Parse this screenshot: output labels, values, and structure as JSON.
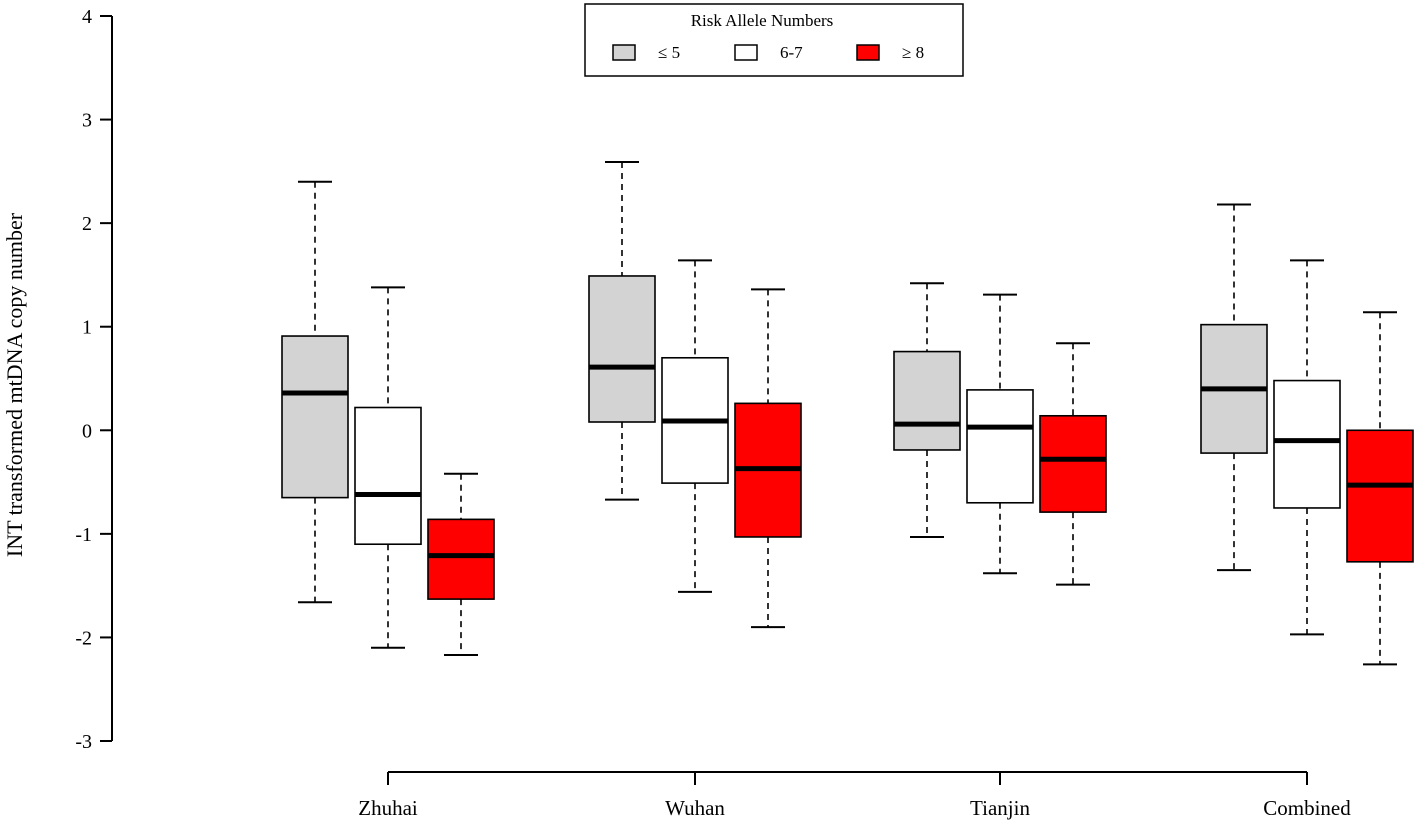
{
  "chart_data": {
    "type": "box",
    "title": "",
    "ylabel": "INT transformed mtDNA copy number",
    "xlabel": "",
    "ylim": [
      -3,
      4
    ],
    "yticks": [
      -3,
      -2,
      -1,
      0,
      1,
      2,
      3,
      4
    ],
    "grid": false,
    "legend": {
      "title": "Risk Allele Numbers",
      "placement": "top-center",
      "entries": [
        {
          "label": "≤ 5",
          "color": "#d3d3d3"
        },
        {
          "label": "6-7",
          "color": "#ffffff"
        },
        {
          "label": "≥ 8",
          "color": "#ff0000"
        }
      ]
    },
    "categories": [
      "Zhuhai",
      "Wuhan",
      "Tianjin",
      "Combined"
    ],
    "series": [
      {
        "name": "≤ 5",
        "color": "#d3d3d3",
        "boxes": [
          {
            "min": -1.66,
            "q1": -0.65,
            "median": 0.36,
            "q3": 0.91,
            "max": 2.4
          },
          {
            "min": -0.67,
            "q1": 0.08,
            "median": 0.61,
            "q3": 1.49,
            "max": 2.59
          },
          {
            "min": -1.03,
            "q1": -0.19,
            "median": 0.06,
            "q3": 0.76,
            "max": 1.42
          },
          {
            "min": -1.35,
            "q1": -0.22,
            "median": 0.4,
            "q3": 1.02,
            "max": 2.18
          }
        ]
      },
      {
        "name": "6-7",
        "color": "#ffffff",
        "boxes": [
          {
            "min": -2.1,
            "q1": -1.1,
            "median": -0.62,
            "q3": 0.22,
            "max": 1.38
          },
          {
            "min": -1.56,
            "q1": -0.51,
            "median": 0.09,
            "q3": 0.7,
            "max": 1.64
          },
          {
            "min": -1.38,
            "q1": -0.7,
            "median": 0.03,
            "q3": 0.39,
            "max": 1.31
          },
          {
            "min": -1.97,
            "q1": -0.75,
            "median": -0.1,
            "q3": 0.48,
            "max": 1.64
          }
        ]
      },
      {
        "name": "≥ 8",
        "color": "#ff0000",
        "boxes": [
          {
            "min": -2.17,
            "q1": -1.63,
            "median": -1.21,
            "q3": -0.86,
            "max": -0.42
          },
          {
            "min": -1.9,
            "q1": -1.03,
            "median": -0.37,
            "q3": 0.26,
            "max": 1.36
          },
          {
            "min": -1.49,
            "q1": -0.79,
            "median": -0.28,
            "q3": 0.14,
            "max": 0.84
          },
          {
            "min": -2.26,
            "q1": -1.27,
            "median": -0.53,
            "q3": 0.0,
            "max": 1.14
          }
        ]
      }
    ]
  }
}
